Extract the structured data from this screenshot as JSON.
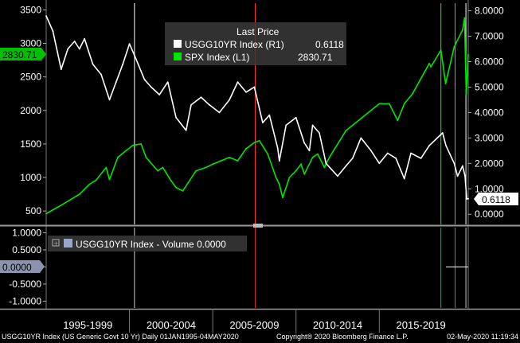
{
  "chart_data": [
    {
      "type": "line",
      "legend": {
        "title": "Last Price",
        "entries": [
          {
            "name": "USGG10YR Index  (R1)",
            "last": "0.6118",
            "color": "#ffffff",
            "axis": "right"
          },
          {
            "name": "SPX Index  (L1)",
            "last": "2830.71",
            "color": "#00e600",
            "axis": "left"
          }
        ]
      },
      "left_axis": {
        "ylim": [
          300,
          3600
        ],
        "ticks": [
          "3500",
          "3000",
          "2500",
          "2000",
          "1500",
          "1000",
          "500"
        ]
      },
      "right_axis": {
        "ylim": [
          -0.4,
          8.3
        ],
        "ticks": [
          "8.0000",
          "7.0000",
          "6.0000",
          "5.0000",
          "4.0000",
          "3.0000",
          "2.0000",
          "1.0000",
          "0.0000"
        ]
      },
      "last_price_tags": {
        "left": "2830.71",
        "right": "0.6118"
      },
      "x_range": [
        1995.0,
        2020.34
      ],
      "series": [
        {
          "name": "SPX Index",
          "axis": "left",
          "color": "#00e600",
          "x": [
            1995.0,
            1996.0,
            1997.0,
            1997.6,
            1998.0,
            1998.6,
            1998.8,
            1999.3,
            1999.8,
            2000.2,
            2000.7,
            2001.0,
            2001.7,
            2002.0,
            2002.5,
            2002.8,
            2003.2,
            2004.0,
            2004.6,
            2005.0,
            2006.0,
            2006.5,
            2007.0,
            2007.5,
            2007.8,
            2008.3,
            2008.8,
            2009.0,
            2009.2,
            2009.6,
            2010.0,
            2010.3,
            2010.5,
            2011.0,
            2011.3,
            2011.7,
            2012.0,
            2013.0,
            2014.0,
            2015.0,
            2015.6,
            2016.1,
            2016.5,
            2017.0,
            2018.0,
            2018.1,
            2018.7,
            2018.98,
            2019.5,
            2020.0,
            2020.12,
            2020.22,
            2020.34
          ],
          "y": [
            460,
            600,
            750,
            900,
            960,
            1150,
            970,
            1300,
            1400,
            1480,
            1500,
            1300,
            1100,
            1150,
            950,
            850,
            800,
            1100,
            1150,
            1200,
            1300,
            1250,
            1430,
            1520,
            1550,
            1350,
            1000,
            900,
            700,
            1000,
            1100,
            1200,
            1050,
            1300,
            1350,
            1150,
            1300,
            1700,
            1900,
            2100,
            2100,
            1850,
            2100,
            2250,
            2700,
            2650,
            2900,
            2400,
            2950,
            3200,
            3380,
            2240,
            2830
          ]
        },
        {
          "name": "USGG10YR Index",
          "axis": "right",
          "color": "#ffffff",
          "x": [
            1995.0,
            1995.4,
            1995.9,
            1996.3,
            1996.7,
            1997.0,
            1997.3,
            1997.8,
            1998.3,
            1998.8,
            1999.2,
            1999.6,
            2000.0,
            2000.4,
            2000.9,
            2001.3,
            2001.8,
            2002.3,
            2002.8,
            2003.4,
            2003.7,
            2004.3,
            2004.8,
            2005.4,
            2006.0,
            2006.5,
            2007.0,
            2007.5,
            2008.0,
            2008.4,
            2008.9,
            2009.0,
            2009.4,
            2010.0,
            2010.5,
            2010.8,
            2011.0,
            2011.4,
            2011.8,
            2012.5,
            2013.0,
            2013.4,
            2013.9,
            2014.5,
            2015.0,
            2015.5,
            2016.0,
            2016.5,
            2016.9,
            2017.5,
            2018.0,
            2018.8,
            2019.0,
            2019.5,
            2019.7,
            2020.0,
            2020.15,
            2020.25,
            2020.34
          ],
          "y": [
            7.8,
            7.2,
            5.7,
            6.5,
            6.8,
            6.5,
            6.9,
            5.9,
            5.5,
            4.5,
            5.2,
            5.9,
            6.7,
            6.1,
            5.3,
            5.0,
            4.7,
            5.2,
            3.8,
            3.3,
            4.3,
            4.6,
            4.3,
            4.0,
            4.5,
            5.2,
            4.8,
            5.0,
            3.6,
            3.9,
            2.6,
            2.1,
            3.5,
            3.8,
            2.8,
            2.5,
            3.5,
            3.2,
            2.0,
            1.5,
            1.9,
            2.2,
            3.0,
            2.5,
            2.0,
            2.4,
            2.2,
            1.4,
            2.4,
            2.2,
            2.7,
            3.2,
            2.7,
            2.0,
            1.5,
            1.9,
            1.5,
            0.6,
            0.6118
          ]
        }
      ],
      "vlines": [
        {
          "x": 2000.3,
          "color": "#ffffff"
        },
        {
          "x": 2007.55,
          "color": "#ff3333"
        },
        {
          "x": 2018.7,
          "color": "#33dd33"
        },
        {
          "x": 2019.55,
          "color": "#33dd33"
        },
        {
          "x": 2020.2,
          "color": "#ffffff"
        }
      ]
    },
    {
      "type": "line",
      "legend": {
        "entries": [
          {
            "name": "USGG10YR Index - Volume 0.0000",
            "color": "#9aa6c8"
          }
        ]
      },
      "ylim": [
        -1.2,
        1.15
      ],
      "ticks": [
        "1.0000",
        "0.5000",
        "0.0000",
        "-0.5000",
        "-1.0000"
      ],
      "last_value_tag": "0.0000",
      "series": [
        {
          "name": "USGG10YR Index - Volume",
          "x": [
            2019.0,
            2020.34
          ],
          "y": [
            0,
            0
          ]
        }
      ]
    }
  ],
  "x_axis": {
    "labels": [
      "1995-1999",
      "2000-2004",
      "2005-2009",
      "2010-2014",
      "2015-2019"
    ]
  },
  "footer": {
    "left": "USGG10YR Index (US Generic Govt 10 Yr)  Daily 01JAN1995-04MAY2020",
    "center": "Copyright® 2020 Bloomberg Finance L.P.",
    "right": "02-May-2020 11:19:34"
  }
}
